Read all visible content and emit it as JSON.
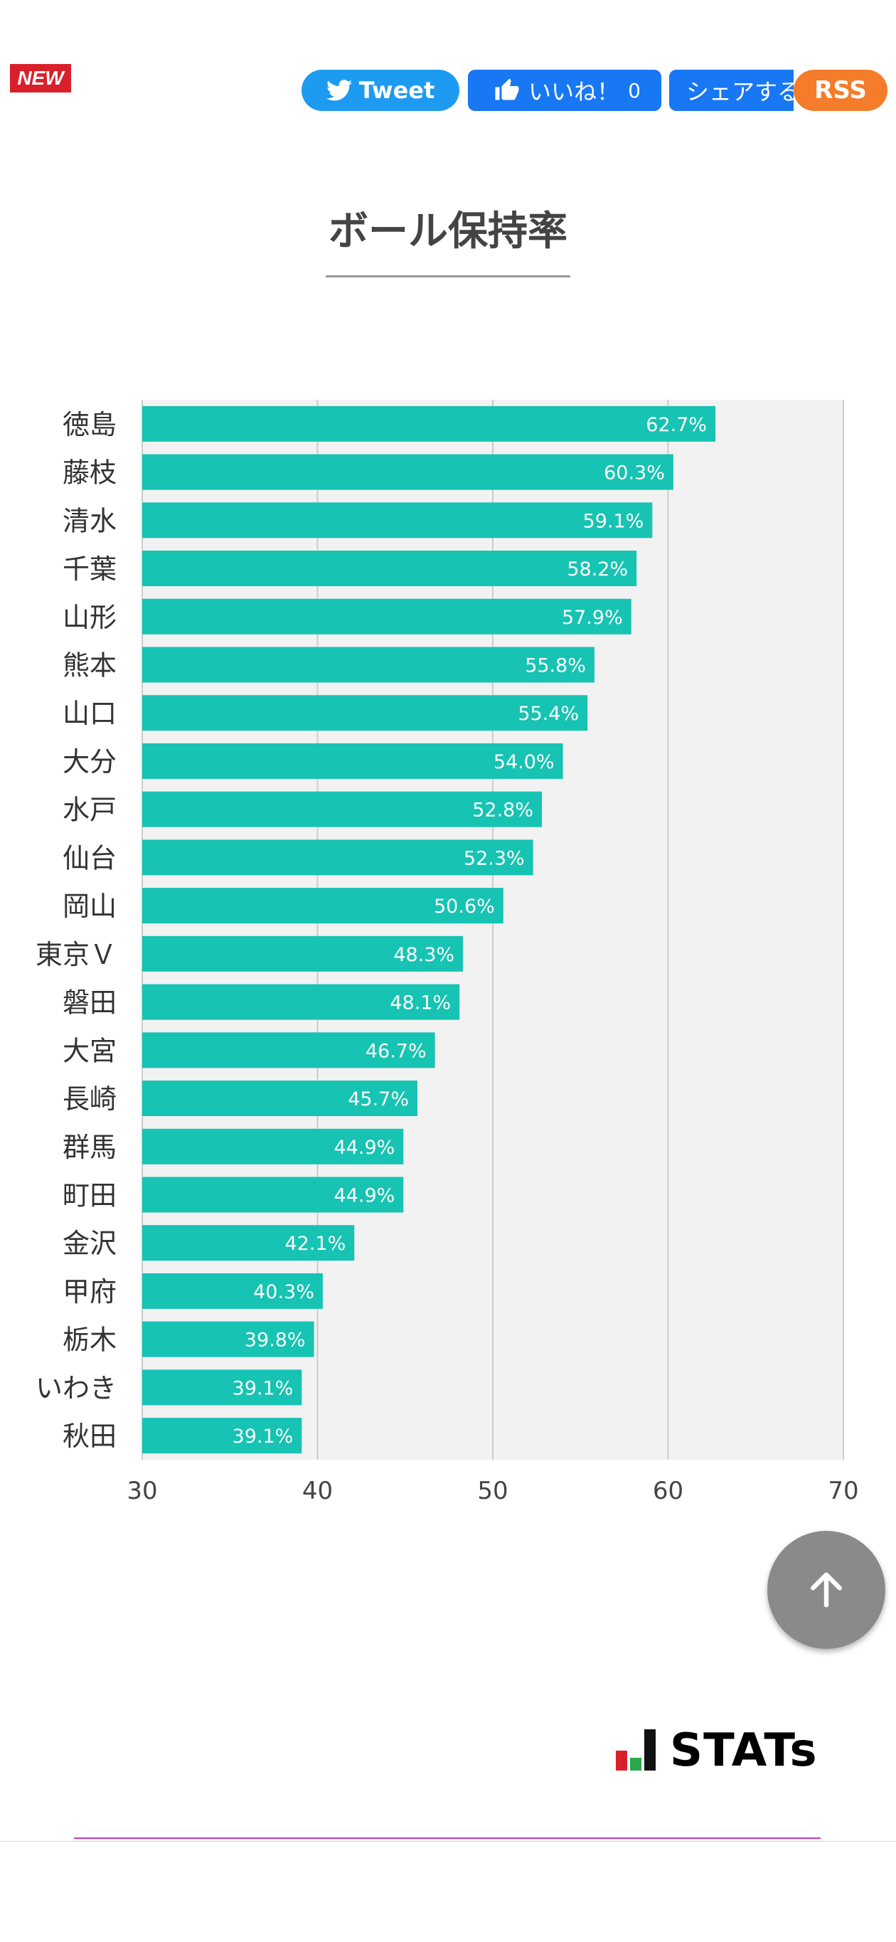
{
  "badge": {
    "new_label": "NEW"
  },
  "share_bar": {
    "tweet_label": "Tweet",
    "like_label": "いいね！",
    "like_count": "0",
    "share_label": "シェアする",
    "rss_label": "RSS"
  },
  "colors": {
    "bar": "#17c3b2",
    "plot_bg": "#f2f2f2",
    "grid": "#cccccc",
    "tweet": "#1d9bf0",
    "facebook": "#1877f2",
    "rss": "#f47c2a"
  },
  "page": {
    "title": "ボール保持率"
  },
  "logo": {
    "text": "STATs"
  },
  "chart_data": {
    "type": "bar",
    "orientation": "horizontal",
    "title": "ボール保持率",
    "categories": [
      "徳島",
      "藤枝",
      "清水",
      "千葉",
      "山形",
      "熊本",
      "山口",
      "大分",
      "水戸",
      "仙台",
      "岡山",
      "東京Ｖ",
      "磐田",
      "大宮",
      "長崎",
      "群馬",
      "町田",
      "金沢",
      "甲府",
      "栃木",
      "いわき",
      "秋田"
    ],
    "values": [
      62.7,
      60.3,
      59.1,
      58.2,
      57.9,
      55.8,
      55.4,
      54.0,
      52.8,
      52.3,
      50.6,
      48.3,
      48.1,
      46.7,
      45.7,
      44.9,
      44.9,
      42.1,
      40.3,
      39.8,
      39.1,
      39.1
    ],
    "value_labels": [
      "62.7%",
      "60.3%",
      "59.1%",
      "58.2%",
      "57.9%",
      "55.8%",
      "55.4%",
      "54.0%",
      "52.8%",
      "52.3%",
      "50.6%",
      "48.3%",
      "48.1%",
      "46.7%",
      "45.7%",
      "44.9%",
      "44.9%",
      "42.1%",
      "40.3%",
      "39.8%",
      "39.1%",
      "39.1%"
    ],
    "xlim": [
      30,
      70
    ],
    "xticks": [
      30,
      40,
      50,
      60,
      70
    ],
    "xlabel": "",
    "ylabel": "",
    "grid": true,
    "legend": "none"
  }
}
